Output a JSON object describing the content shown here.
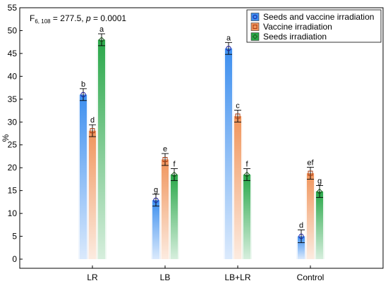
{
  "chart_data": {
    "type": "bar",
    "ylabel": "%",
    "xlabel": "",
    "ylim": [
      -2,
      55
    ],
    "yticks": [
      0,
      5,
      10,
      15,
      20,
      25,
      30,
      35,
      40,
      45,
      50,
      55
    ],
    "categories": [
      "LR",
      "LB",
      "LB+LR",
      "Control"
    ],
    "stat_annotation": {
      "F_main": "F",
      "F_sub": "6, 108",
      "F_rest": " = 277.5, ",
      "p_label": "p",
      "p_rest": " = 0.0001"
    },
    "legend": {
      "placement": "top-right"
    },
    "series": [
      {
        "name": "Seeds and vaccine irradiation",
        "color": "#3d8fef",
        "marker": "circle",
        "values": [
          36.0,
          12.9,
          46.1,
          5.0
        ],
        "err": [
          1.3,
          1.3,
          1.3,
          1.4
        ],
        "labels": [
          "b",
          "g",
          "a",
          "d"
        ]
      },
      {
        "name": "Vaccine irradiation",
        "color": "#f0955c",
        "marker": "square",
        "values": [
          28.1,
          21.8,
          31.3,
          18.8
        ],
        "err": [
          1.3,
          1.3,
          1.3,
          1.3
        ],
        "labels": [
          "d",
          "e",
          "c",
          "ef"
        ]
      },
      {
        "name": "Seeds irradiation",
        "color": "#2aa84a",
        "marker": "diamond",
        "values": [
          48.0,
          18.5,
          18.5,
          14.8
        ],
        "err": [
          1.3,
          1.3,
          1.3,
          1.3
        ],
        "labels": [
          "a",
          "f",
          "f",
          "g"
        ]
      }
    ]
  }
}
